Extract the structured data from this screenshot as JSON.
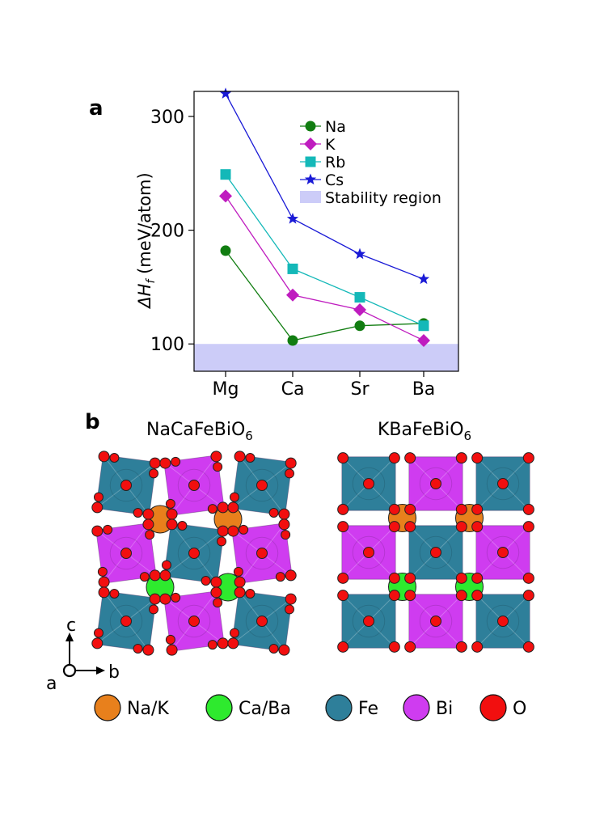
{
  "panel_a_label": "a",
  "panel_b_label": "b",
  "chart_data": {
    "type": "line",
    "title": "",
    "xlabel": "",
    "ylabel_prefix": "ΔH",
    "ylabel_sub": "f",
    "ylabel_suffix": " (meV/atom)",
    "categories": [
      "Mg",
      "Ca",
      "Sr",
      "Ba"
    ],
    "ylim": [
      76,
      322
    ],
    "yticks": [
      100,
      200,
      300
    ],
    "stability_region": [
      76,
      100
    ],
    "stability_label": "Stability region",
    "stability_color": "#ccccf8",
    "series": [
      {
        "name": "Na",
        "color": "#117d11",
        "marker": "circle",
        "values": [
          182,
          103,
          116,
          118
        ]
      },
      {
        "name": "K",
        "color": "#bf1cbf",
        "marker": "diamond",
        "values": [
          230,
          143,
          130,
          103
        ]
      },
      {
        "name": "Rb",
        "color": "#14b8b8",
        "marker": "square",
        "values": [
          249,
          166,
          141,
          116
        ]
      },
      {
        "name": "Cs",
        "color": "#1a1ad6",
        "marker": "star",
        "values": [
          320,
          210,
          179,
          157
        ]
      }
    ]
  },
  "structures": {
    "left_title_main": "NaCaFeBiO",
    "left_title_sub": "6",
    "right_title_main": "KBaFeBiO",
    "right_title_sub": "6"
  },
  "axes_labels": {
    "c": "c",
    "b": "b",
    "a": "a"
  },
  "element_legend": [
    {
      "label": "Na/K",
      "color": "#e8801c"
    },
    {
      "label": "Ca/Ba",
      "color": "#2eea2e"
    },
    {
      "label": "Fe",
      "color": "#2e7f9a"
    },
    {
      "label": "Bi",
      "color": "#cf3cf0"
    },
    {
      "label": "O",
      "color": "#f20f0f"
    }
  ]
}
